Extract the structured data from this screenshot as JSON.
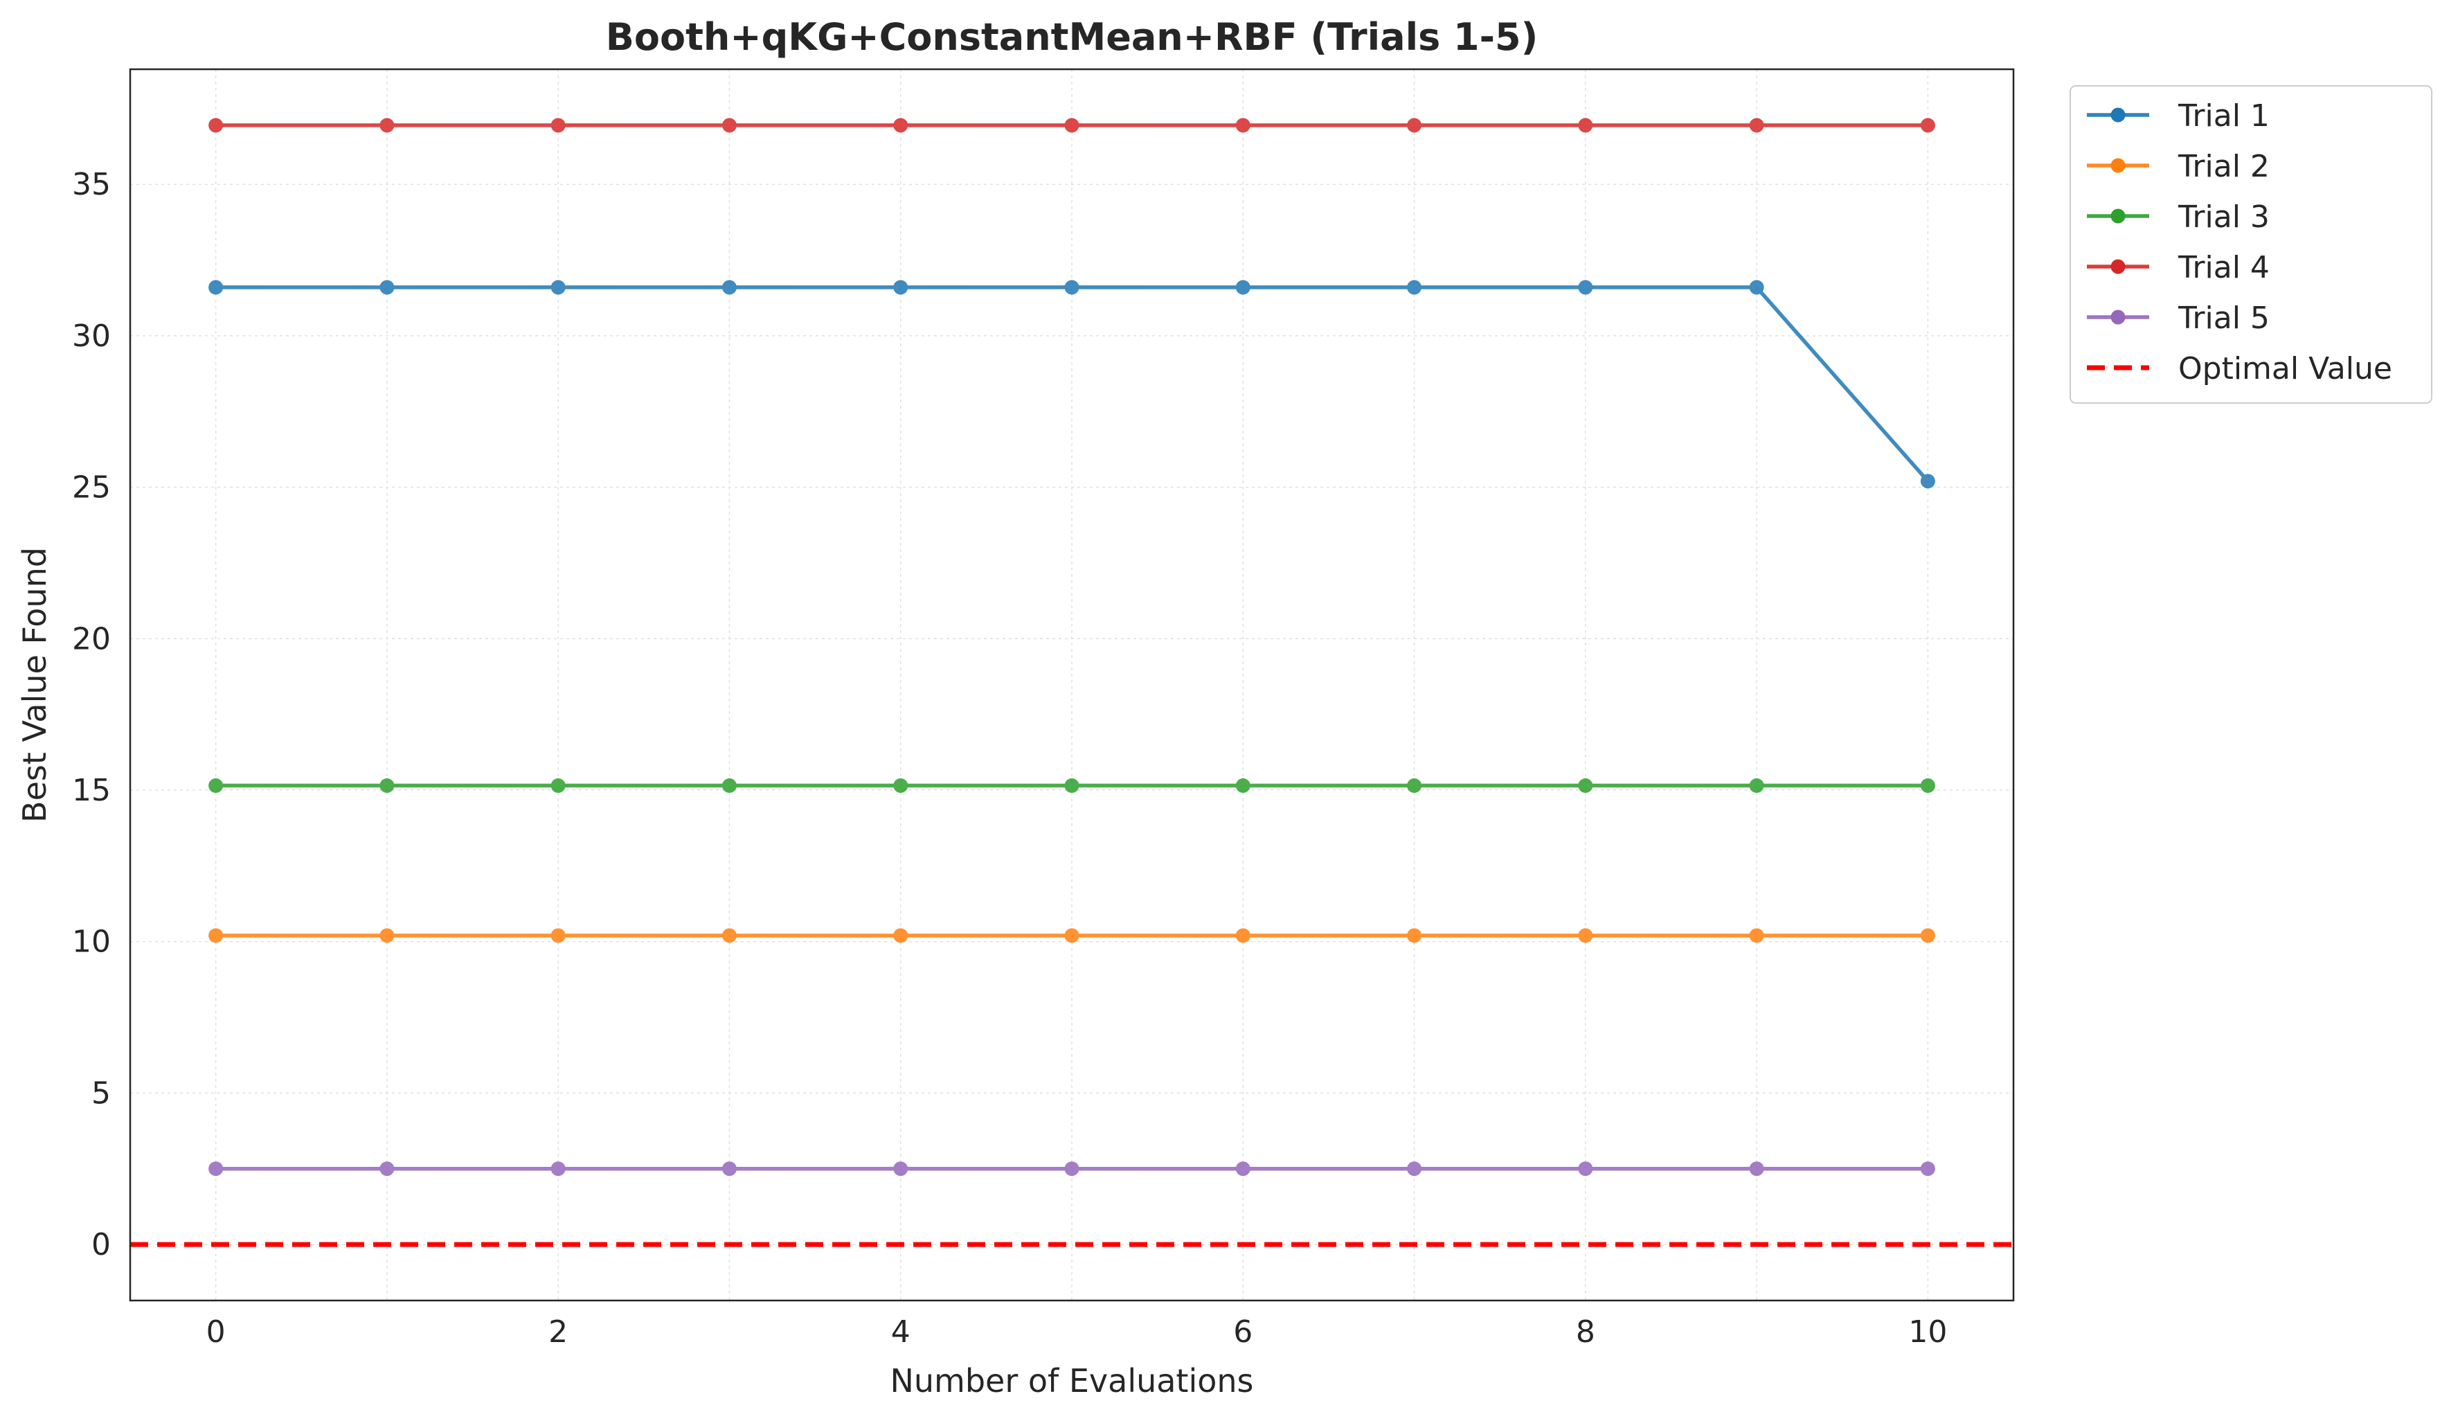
{
  "chart_data": {
    "type": "line",
    "title": "Booth+qKG+ConstantMean+RBF (Trials 1-5)",
    "xlabel": "Number of Evaluations",
    "ylabel": "Best Value Found",
    "xlim": [
      -0.5,
      10.5
    ],
    "ylim": [
      -1.85,
      38.8
    ],
    "xticks": [
      0,
      2,
      4,
      6,
      8,
      10
    ],
    "yticks": [
      0,
      5,
      10,
      15,
      20,
      25,
      30,
      35
    ],
    "grid": true,
    "legend_position": "outside-top-right",
    "x": [
      0,
      1,
      2,
      3,
      4,
      5,
      6,
      7,
      8,
      9,
      10
    ],
    "series": [
      {
        "name": "Trial 1",
        "color": "#1f77b4",
        "style": "line-marker",
        "values": [
          31.6,
          31.6,
          31.6,
          31.6,
          31.6,
          31.6,
          31.6,
          31.6,
          31.6,
          31.6,
          25.2
        ]
      },
      {
        "name": "Trial 2",
        "color": "#ff7f0e",
        "style": "line-marker",
        "values": [
          10.2,
          10.2,
          10.2,
          10.2,
          10.2,
          10.2,
          10.2,
          10.2,
          10.2,
          10.2,
          10.2
        ]
      },
      {
        "name": "Trial 3",
        "color": "#2ca02c",
        "style": "line-marker",
        "values": [
          15.15,
          15.15,
          15.15,
          15.15,
          15.15,
          15.15,
          15.15,
          15.15,
          15.15,
          15.15,
          15.15
        ]
      },
      {
        "name": "Trial 4",
        "color": "#d62728",
        "style": "line-marker",
        "values": [
          36.95,
          36.95,
          36.95,
          36.95,
          36.95,
          36.95,
          36.95,
          36.95,
          36.95,
          36.95,
          36.95
        ]
      },
      {
        "name": "Trial 5",
        "color": "#9467bd",
        "style": "line-marker",
        "values": [
          2.5,
          2.5,
          2.5,
          2.5,
          2.5,
          2.5,
          2.5,
          2.5,
          2.5,
          2.5,
          2.5
        ]
      }
    ],
    "reference_lines": [
      {
        "name": "Optimal Value",
        "y": 0,
        "color": "#ff0000",
        "style": "dashed"
      }
    ]
  }
}
